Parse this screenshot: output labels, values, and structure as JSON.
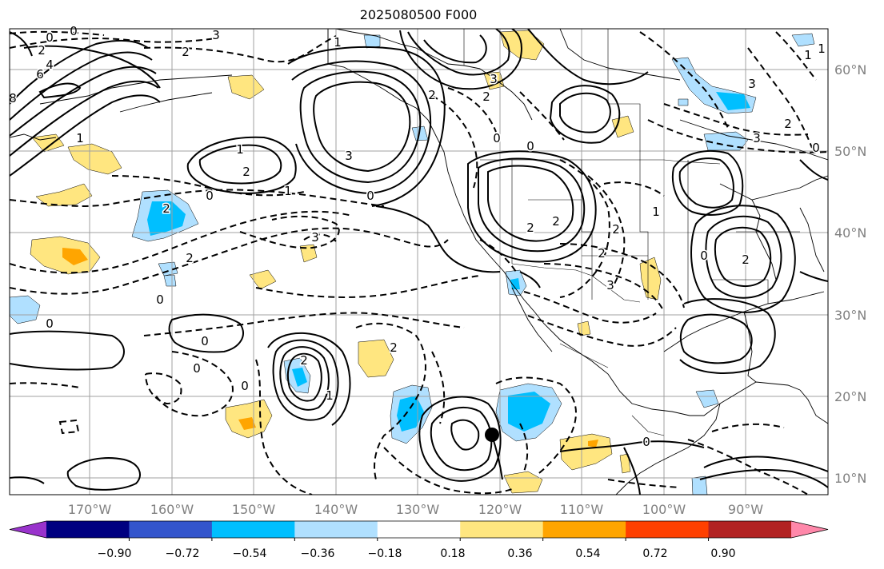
{
  "title": "2025080500 F000",
  "lon_labels": [
    "170°W",
    "160°W",
    "150°W",
    "140°W",
    "130°W",
    "120°W",
    "110°W",
    "100°W",
    "90°W"
  ],
  "lat_labels": [
    "60°N",
    "50°N",
    "40°N",
    "30°N",
    "20°N",
    "10°N"
  ],
  "colorbar": {
    "tick_labels": [
      "−0.90",
      "−0.72",
      "−0.54",
      "−0.36",
      "−0.18",
      "0.18",
      "0.36",
      "0.54",
      "0.72",
      "0.90"
    ],
    "colors": [
      "#9933cc",
      "#000080",
      "#3355cc",
      "#00bfff",
      "#b0e0ff",
      "#ffffff",
      "#ffe680",
      "#ffa500",
      "#ff4000",
      "#b22222",
      "#ff88aa"
    ]
  },
  "contour_labels": [
    {
      "text": "0"
    },
    {
      "text": "2"
    },
    {
      "text": "4"
    },
    {
      "text": "6"
    },
    {
      "text": "8"
    },
    {
      "text": "3"
    },
    {
      "text": "0"
    },
    {
      "text": "1"
    },
    {
      "text": "2"
    },
    {
      "text": "3"
    },
    {
      "text": "2"
    },
    {
      "text": "1"
    },
    {
      "text": "2"
    },
    {
      "text": "0"
    },
    {
      "text": "1"
    },
    {
      "text": "2"
    },
    {
      "text": "3"
    },
    {
      "text": "0"
    },
    {
      "text": "2"
    },
    {
      "text": "1"
    },
    {
      "text": "0"
    },
    {
      "text": "0"
    },
    {
      "text": "2"
    },
    {
      "text": "3"
    },
    {
      "text": "3"
    },
    {
      "text": "0"
    },
    {
      "text": "0"
    },
    {
      "text": "2"
    },
    {
      "text": "2"
    },
    {
      "text": "2"
    },
    {
      "text": "3"
    },
    {
      "text": "2"
    },
    {
      "text": "1"
    },
    {
      "text": "3"
    },
    {
      "text": "2"
    },
    {
      "text": "1"
    },
    {
      "text": "0"
    },
    {
      "text": "2"
    },
    {
      "text": "0"
    },
    {
      "text": "0"
    },
    {
      "text": "1"
    },
    {
      "text": "0"
    },
    {
      "text": "0"
    },
    {
      "text": "1"
    },
    {
      "text": "2"
    },
    {
      "text": "2"
    },
    {
      "text": "0"
    }
  ]
}
